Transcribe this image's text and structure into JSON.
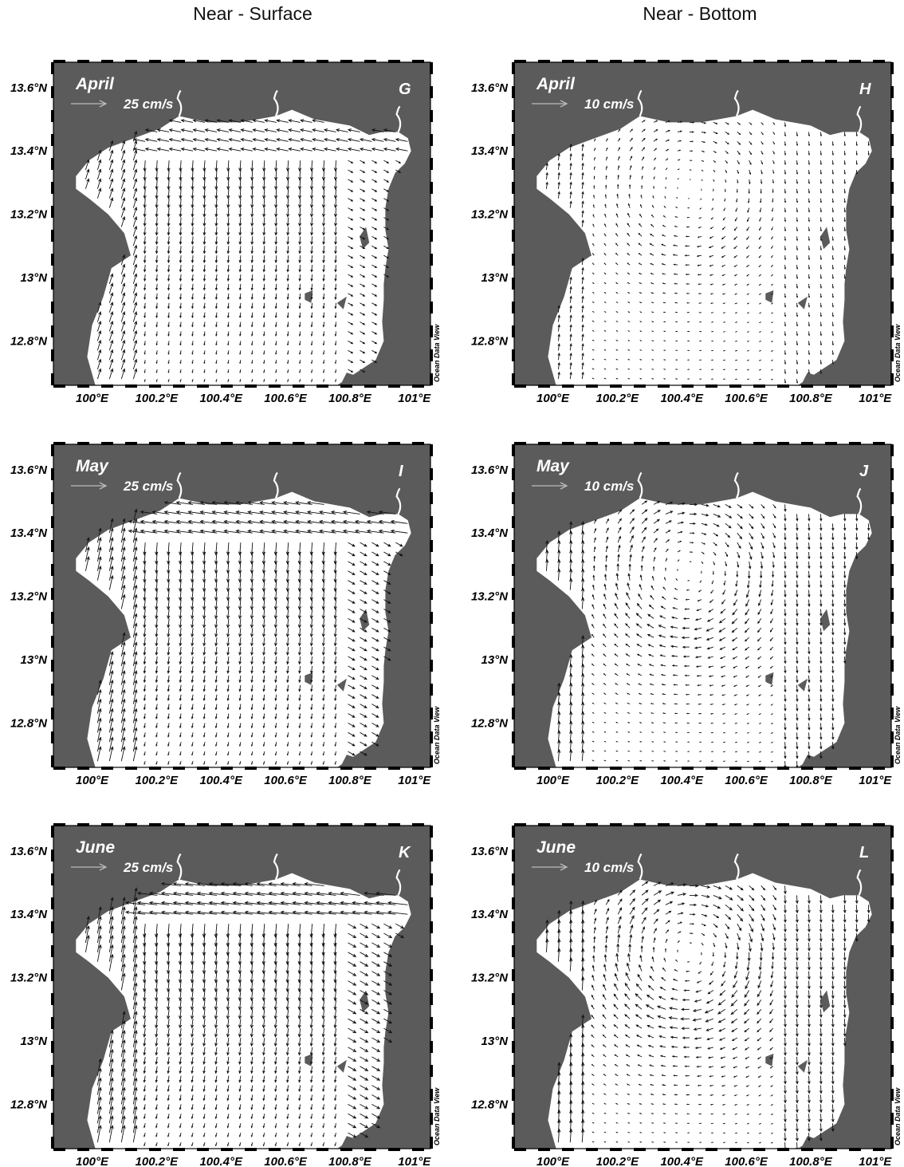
{
  "columns": [
    "Near - Surface",
    "Near - Bottom"
  ],
  "lat_ticks": [
    "13.6°N",
    "13.4°N",
    "13.2°N",
    "13°N",
    "12.8°N"
  ],
  "lon_ticks": [
    "100°E",
    "100.2°E",
    "100.4°E",
    "100.6°E",
    "100.8°E",
    "101°E"
  ],
  "credit": "Ocean Data View",
  "colors": {
    "land": "#5b5b5b",
    "water": "#ffffff",
    "arrow": "#111111",
    "scale_arrow": "#bbbbbb"
  },
  "panels": [
    {
      "letter": "G",
      "month": "April",
      "scale": "25 cm/s",
      "pattern": "surface",
      "strength": 0.6
    },
    {
      "letter": "H",
      "month": "April",
      "scale": "10 cm/s",
      "pattern": "bottom",
      "strength": 0.5
    },
    {
      "letter": "I",
      "month": "May",
      "scale": "25 cm/s",
      "pattern": "surface",
      "strength": 0.85
    },
    {
      "letter": "J",
      "month": "May",
      "scale": "10 cm/s",
      "pattern": "bottom",
      "strength": 0.85
    },
    {
      "letter": "K",
      "month": "June",
      "scale": "25 cm/s",
      "pattern": "surface",
      "strength": 1.0
    },
    {
      "letter": "L",
      "month": "June",
      "scale": "10 cm/s",
      "pattern": "bottom",
      "strength": 1.0
    }
  ]
}
